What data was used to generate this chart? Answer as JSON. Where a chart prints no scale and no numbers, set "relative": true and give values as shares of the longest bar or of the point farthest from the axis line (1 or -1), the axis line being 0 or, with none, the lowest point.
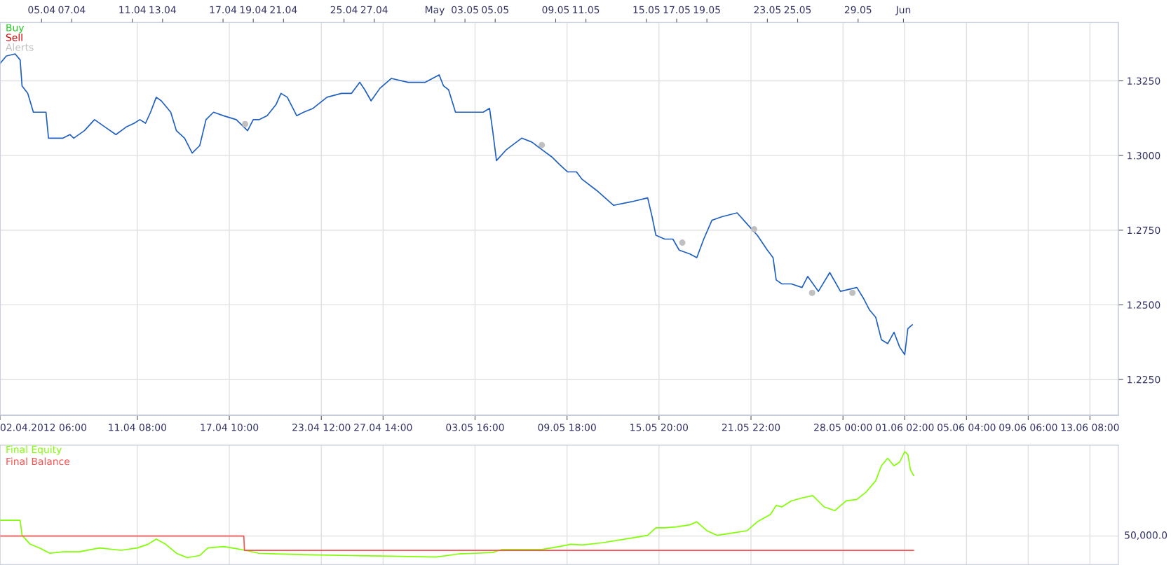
{
  "chart_data": [
    {
      "type": "line",
      "x": [
        "2012-04-02T06:00",
        "2012-04-02T16:00",
        "2012-04-03T06:00",
        "2012-04-03T14:00",
        "2012-04-03T17:00",
        "2012-04-04T02:00",
        "2012-04-04T11:00",
        "2012-04-04T21:00",
        "2012-04-05T07:00",
        "2012-04-05T11:00",
        "2012-04-05T18:00",
        "2012-04-06T10:00",
        "2012-04-06T21:00",
        "2012-04-07T03:00",
        "2012-04-07T20:00",
        "2012-04-08T12:00",
        "2012-04-09T05:00",
        "2012-04-09T22:00",
        "2012-04-10T14:00",
        "2012-04-11T03:00",
        "2012-04-11T12:00",
        "2012-04-11T21:00",
        "2012-04-12T05:00",
        "2012-04-12T14:00",
        "2012-04-12T22:00",
        "2012-04-13T13:00",
        "2012-04-13T22:00",
        "2012-04-14T11:00",
        "2012-04-14T23:00",
        "2012-04-15T11:00",
        "2012-04-15T21:00",
        "2012-04-16T09:00",
        "2012-04-17T01:00",
        "2012-04-17T21:00",
        "2012-04-18T15:00",
        "2012-04-19T00:00",
        "2012-04-19T09:00",
        "2012-04-19T22:00",
        "2012-04-20T12:00",
        "2012-04-20T20:00",
        "2012-04-21T06:00",
        "2012-04-21T21:00",
        "2012-04-22T08:00",
        "2012-04-22T23:00",
        "2012-04-23T21:00",
        "2012-04-24T20:00",
        "2012-04-25T12:00",
        "2012-04-26T01:00",
        "2012-04-26T09:00",
        "2012-04-26T19:00",
        "2012-04-27T09:00",
        "2012-04-28T03:00",
        "2012-04-29T06:00",
        "2012-04-30T09:00",
        "2012-05-01T07:00",
        "2012-05-01T14:00",
        "2012-05-01T22:00",
        "2012-05-02T09:00",
        "2012-05-02T19:00",
        "2012-05-03T15:00",
        "2012-05-04T05:00",
        "2012-05-04T15:00",
        "2012-05-04T20:00",
        "2012-05-05T02:00",
        "2012-05-05T18:00",
        "2012-05-06T18:00",
        "2012-05-07T10:00",
        "2012-05-08T02:00",
        "2012-05-08T18:00",
        "2012-05-09T06:00",
        "2012-05-09T19:00",
        "2012-05-10T09:00",
        "2012-05-10T18:00",
        "2012-05-11T17:00",
        "2012-05-12T20:00",
        "2012-05-14T00:00",
        "2012-05-15T02:00",
        "2012-05-15T09:00",
        "2012-05-15T15:00",
        "2012-05-16T05:00",
        "2012-05-16T18:00",
        "2012-05-17T04:00",
        "2012-05-17T21:00",
        "2012-05-18T08:00",
        "2012-05-18T19:00",
        "2012-05-19T08:00",
        "2012-05-20T00:00",
        "2012-05-21T00:00",
        "2012-05-21T16:00",
        "2012-05-22T08:00",
        "2012-05-23T00:00",
        "2012-05-23T09:00",
        "2012-05-23T14:00",
        "2012-05-23T23:00",
        "2012-05-24T14:00",
        "2012-05-25T07:00",
        "2012-05-25T16:00",
        "2012-05-26T09:00",
        "2012-05-27T03:00",
        "2012-05-27T20:00",
        "2012-05-28T22:00",
        "2012-05-29T09:00",
        "2012-05-29T18:00",
        "2012-05-30T04:00",
        "2012-05-30T13:00",
        "2012-05-30T23:00",
        "2012-05-31T09:00",
        "2012-05-31T18:00",
        "2012-06-01T02:00",
        "2012-06-01T07:00",
        "2012-06-01T14:00"
      ],
      "series": [
        {
          "color": "#1f5fbf",
          "values": [
            1.3308,
            1.3333,
            1.334,
            1.332,
            1.3233,
            1.3208,
            1.3145,
            1.3145,
            1.3145,
            1.3058,
            1.3058,
            1.3058,
            1.307,
            1.3058,
            1.3083,
            1.312,
            1.3095,
            1.307,
            1.3095,
            1.3108,
            1.312,
            1.3108,
            1.3145,
            1.3195,
            1.3183,
            1.3145,
            1.3083,
            1.3058,
            1.3008,
            1.3033,
            1.312,
            1.3145,
            1.3133,
            1.312,
            1.3083,
            1.312,
            1.312,
            1.3133,
            1.317,
            1.3208,
            1.3195,
            1.3133,
            1.3145,
            1.3158,
            1.3195,
            1.3208,
            1.3208,
            1.3245,
            1.322,
            1.3183,
            1.3225,
            1.3258,
            1.3245,
            1.3245,
            1.327,
            1.3233,
            1.322,
            1.3145,
            1.3145,
            1.3145,
            1.3145,
            1.3158,
            1.3083,
            1.2983,
            1.302,
            1.3058,
            1.3045,
            1.302,
            1.2995,
            1.297,
            1.2945,
            1.2945,
            1.292,
            1.2883,
            1.2833,
            1.2845,
            1.2858,
            1.2795,
            1.2733,
            1.272,
            1.272,
            1.2683,
            1.267,
            1.2658,
            1.272,
            1.2783,
            1.2795,
            1.2808,
            1.277,
            1.2733,
            1.2683,
            1.2658,
            1.2583,
            1.257,
            1.257,
            1.2558,
            1.2595,
            1.2545,
            1.2608,
            1.2545,
            1.2558,
            1.252,
            1.2483,
            1.2458,
            1.2383,
            1.237,
            1.2408,
            1.2358,
            1.2333,
            1.242,
            1.2433
          ]
        },
        {
          "name": "Alerts",
          "type": "scatter",
          "color": "#c0c0c0",
          "x": [
            "2012-04-18T11:00",
            "2012-05-08T02:00",
            "2012-05-17T09:00",
            "2012-05-22T03:00",
            "2012-05-25T23:00",
            "2012-05-28T15:00"
          ],
          "values": [
            1.3105,
            1.3035,
            1.2708,
            1.2753,
            1.254,
            1.254
          ]
        }
      ],
      "xlim": [
        "2012-04-02T06:00",
        "2012-06-15T05:00"
      ],
      "xticks": [
        {
          "value": "2012-04-02T06:00",
          "label": "02.04.2012 06:00"
        },
        {
          "value": "2012-04-11T08:00",
          "label": "11.04 08:00"
        },
        {
          "value": "2012-04-17T10:00",
          "label": "17.04 10:00"
        },
        {
          "value": "2012-04-23T12:00",
          "label": "23.04 12:00"
        },
        {
          "value": "2012-04-27T14:00",
          "label": "27.04 14:00"
        },
        {
          "value": "2012-05-03T16:00",
          "label": "03.05 16:00"
        },
        {
          "value": "2012-05-09T18:00",
          "label": "09.05 18:00"
        },
        {
          "value": "2012-05-15T20:00",
          "label": "15.05 20:00"
        },
        {
          "value": "2012-05-21T22:00",
          "label": "21.05 22:00"
        },
        {
          "value": "2012-05-28T00:00",
          "label": "28.05 00:00"
        },
        {
          "value": "2012-06-01T02:00",
          "label": "01.06 02:00"
        },
        {
          "value": "2012-06-05T04:00",
          "label": "05.06 04:00"
        },
        {
          "value": "2012-06-09T06:00",
          "label": "09.06 06:00"
        },
        {
          "value": "2012-06-13T08:00",
          "label": "13.06 08:00"
        }
      ],
      "x2lim": [
        "2012-04-02T06:00",
        "2012-06-15T05:00"
      ],
      "x2ticks": [
        {
          "value": "2012-04-05",
          "label": "05.04"
        },
        {
          "value": "2012-04-07",
          "label": "07.04"
        },
        {
          "value": "2012-04-11",
          "label": "11.04"
        },
        {
          "value": "2012-04-13",
          "label": "13.04"
        },
        {
          "value": "2012-04-17",
          "label": "17.04"
        },
        {
          "value": "2012-04-19",
          "label": "19.04"
        },
        {
          "value": "2012-04-21",
          "label": "21.04"
        },
        {
          "value": "2012-04-25",
          "label": "25.04"
        },
        {
          "value": "2012-04-27",
          "label": "27.04"
        },
        {
          "value": "2012-05-01",
          "label": "May"
        },
        {
          "value": "2012-05-03",
          "label": "03.05"
        },
        {
          "value": "2012-05-05",
          "label": "05.05"
        },
        {
          "value": "2012-05-09",
          "label": "09.05"
        },
        {
          "value": "2012-05-11",
          "label": "11.05"
        },
        {
          "value": "2012-05-15",
          "label": "15.05"
        },
        {
          "value": "2012-05-17",
          "label": "17.05"
        },
        {
          "value": "2012-05-19",
          "label": "19.05"
        },
        {
          "value": "2012-05-23",
          "label": "23.05"
        },
        {
          "value": "2012-05-25",
          "label": "25.05"
        },
        {
          "value": "2012-05-29",
          "label": "29.05"
        },
        {
          "value": "2012-06-01",
          "label": "Jun"
        }
      ],
      "ylim": [
        1.213,
        1.3445
      ],
      "yticks": [
        {
          "value": 1.225,
          "label": "1.2250"
        },
        {
          "value": 1.25,
          "label": "1.2500"
        },
        {
          "value": 1.275,
          "label": "1.2750"
        },
        {
          "value": 1.3,
          "label": "1.3000"
        },
        {
          "value": 1.325,
          "label": "1.3250"
        }
      ],
      "grid": true,
      "annotations": [
        "Buy",
        "Sell"
      ]
    },
    {
      "type": "line",
      "relative": true,
      "tick_labels": false,
      "series": [
        {
          "name": "Final Equity",
          "color": "#80ff00",
          "x": [
            "2012-04-02T06:00",
            "2012-04-03T14:00",
            "2012-04-03T17:00",
            "2012-04-04T06:00",
            "2012-04-04T21:00",
            "2012-04-05T13:00",
            "2012-04-06T10:00",
            "2012-04-07T12:00",
            "2012-04-08T20:00",
            "2012-04-10T06:00",
            "2012-04-11T08:00",
            "2012-04-12T01:00",
            "2012-04-12T14:00",
            "2012-04-13T05:00",
            "2012-04-13T22:00",
            "2012-04-14T15:00",
            "2012-04-15T11:00",
            "2012-04-16T00:00",
            "2012-04-17T01:00",
            "2012-04-17T21:00",
            "2012-04-18T11:00",
            "2012-04-19T09:00",
            "2012-04-20T12:00",
            "2012-04-22T15:00",
            "2012-04-25T12:00",
            "2012-04-28T03:00",
            "2012-05-01T02:00",
            "2012-05-02T14:00",
            "2012-05-03T15:00",
            "2012-05-04T20:00",
            "2012-05-05T10:00",
            "2012-05-08T02:00",
            "2012-05-09T06:00",
            "2012-05-10T00:00",
            "2012-05-10T18:00",
            "2012-05-12T02:00",
            "2012-05-13T15:00",
            "2012-05-15T02:00",
            "2012-05-15T15:00",
            "2012-05-16T05:00",
            "2012-05-16T23:00",
            "2012-05-17T21:00",
            "2012-05-18T08:00",
            "2012-05-19T00:00",
            "2012-05-19T16:00",
            "2012-05-20T16:00",
            "2012-05-21T16:00",
            "2012-05-22T08:00",
            "2012-05-23T05:00",
            "2012-05-23T14:00",
            "2012-05-23T23:00",
            "2012-05-24T14:00",
            "2012-05-25T07:00",
            "2012-05-26T00:00",
            "2012-05-26T18:00",
            "2012-05-27T11:00",
            "2012-05-28T05:00",
            "2012-05-28T22:00",
            "2012-05-29T13:00",
            "2012-05-30T04:00",
            "2012-05-30T13:00",
            "2012-05-30T23:00",
            "2012-05-31T09:00",
            "2012-05-31T18:00",
            "2012-06-01T02:00",
            "2012-06-01T07:00",
            "2012-06-01T11:00",
            "2012-06-01T16:00"
          ],
          "values": [
            0.391,
            0.391,
            0.258,
            0.179,
            0.146,
            0.099,
            0.112,
            0.112,
            0.146,
            0.125,
            0.146,
            0.179,
            0.225,
            0.179,
            0.099,
            0.06,
            0.079,
            0.146,
            0.159,
            0.14,
            0.125,
            0.099,
            0.093,
            0.086,
            0.079,
            0.073,
            0.066,
            0.093,
            0.099,
            0.106,
            0.132,
            0.132,
            0.159,
            0.179,
            0.173,
            0.192,
            0.225,
            0.258,
            0.325,
            0.325,
            0.332,
            0.351,
            0.378,
            0.299,
            0.258,
            0.278,
            0.299,
            0.378,
            0.443,
            0.523,
            0.51,
            0.563,
            0.589,
            0.61,
            0.51,
            0.477,
            0.563,
            0.576,
            0.643,
            0.742,
            0.874,
            0.941,
            0.874,
            0.907,
            1,
            0.974,
            0.841,
            0.789
          ]
        },
        {
          "name": "Final Balance",
          "color": "#ff5050",
          "x": [
            "2012-04-02T06:00",
            "2012-04-18T09:00",
            "2012-04-18T10:00",
            "2012-06-01T16:00"
          ],
          "values": [
            0.252,
            0.252,
            0.125,
            0.125
          ]
        }
      ],
      "xlim": [
        "2012-04-02T06:00",
        "2012-06-15T05:00"
      ],
      "xticks": [
        {
          "value": "2012-04-02T06:00",
          "label": null
        },
        {
          "value": "2012-04-11T08:00",
          "label": null
        },
        {
          "value": "2012-04-17T10:00",
          "label": null
        },
        {
          "value": "2012-04-23T12:00",
          "label": null
        },
        {
          "value": "2012-04-27T14:00",
          "label": null
        },
        {
          "value": "2012-05-03T16:00",
          "label": null
        },
        {
          "value": "2012-05-09T18:00",
          "label": null
        },
        {
          "value": "2012-05-15T20:00",
          "label": null
        },
        {
          "value": "2012-05-21T22:00",
          "label": null
        },
        {
          "value": "2012-05-28T00:00",
          "label": null
        },
        {
          "value": "2012-06-01T02:00",
          "label": null
        },
        {
          "value": "2012-06-05T04:00",
          "label": null
        },
        {
          "value": "2012-06-09T06:00",
          "label": null
        },
        {
          "value": "2012-06-13T08:00",
          "label": null
        }
      ],
      "annotations": [
        "50,000.0"
      ],
      "grid": "x"
    }
  ]
}
